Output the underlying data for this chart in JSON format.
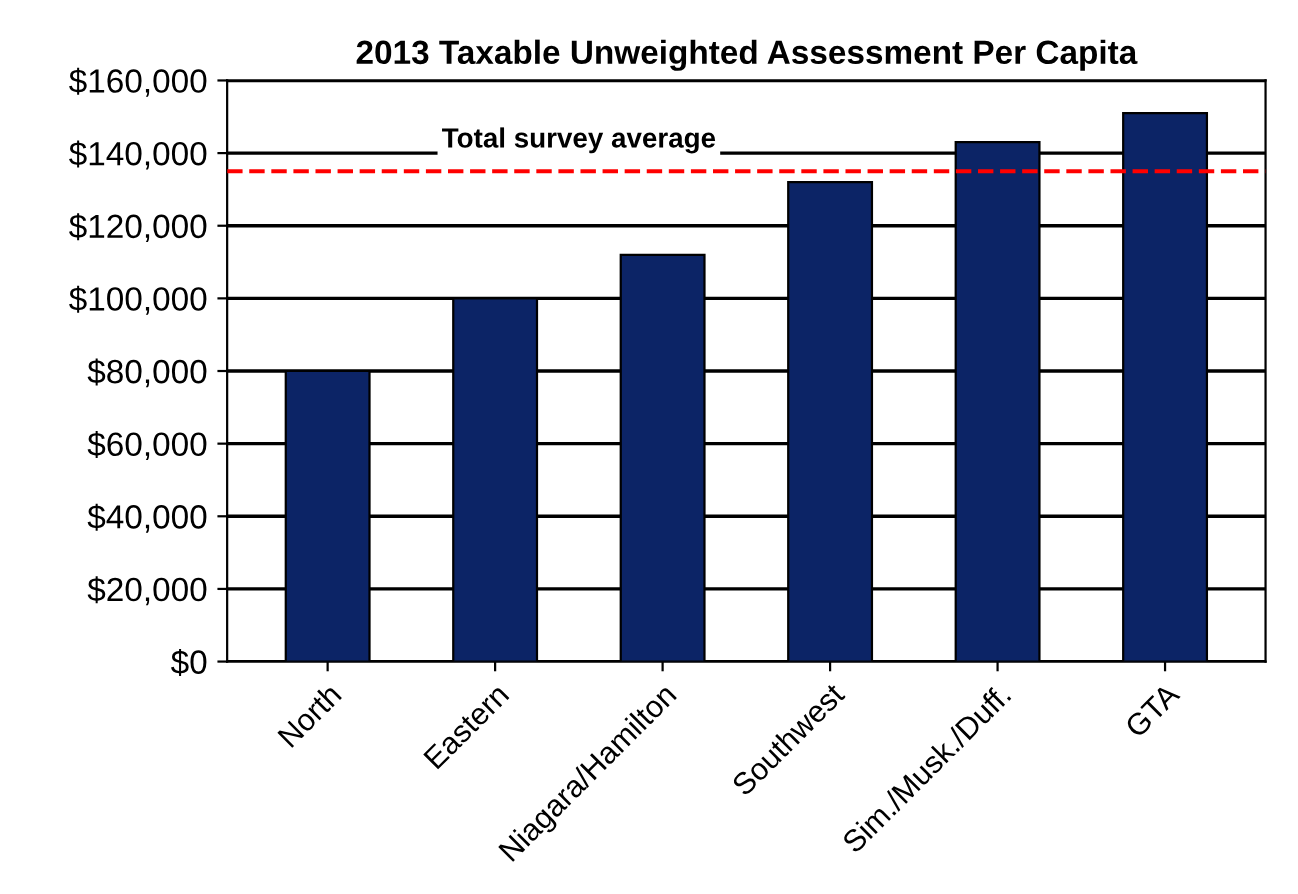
{
  "chart_data": {
    "type": "bar",
    "title": "2013 Taxable Unweighted Assessment Per Capita",
    "categories": [
      "North",
      "Eastern",
      "Niagara/Hamilton",
      "Southwest",
      "Sim./Musk./Duff.",
      "GTA"
    ],
    "values": [
      80000,
      100000,
      112000,
      132000,
      143000,
      151000
    ],
    "color": "#0c2466",
    "ylim": [
      0,
      160000
    ],
    "yticks": [
      {
        "value": 0,
        "label": "$0"
      },
      {
        "value": 20000,
        "label": "$20,000"
      },
      {
        "value": 40000,
        "label": "$40,000"
      },
      {
        "value": 60000,
        "label": "$60,000"
      },
      {
        "value": 80000,
        "label": "$80,000"
      },
      {
        "value": 100000,
        "label": "$100,000"
      },
      {
        "value": 120000,
        "label": "$120,000"
      },
      {
        "value": 140000,
        "label": "$140,000"
      },
      {
        "value": 160000,
        "label": "$160,000"
      }
    ],
    "grid": "y",
    "ref_lines": [
      {
        "axis": "y",
        "value": 135000,
        "label": "Total survey average",
        "color": "#ff0000",
        "line_style": "dashed"
      }
    ]
  }
}
